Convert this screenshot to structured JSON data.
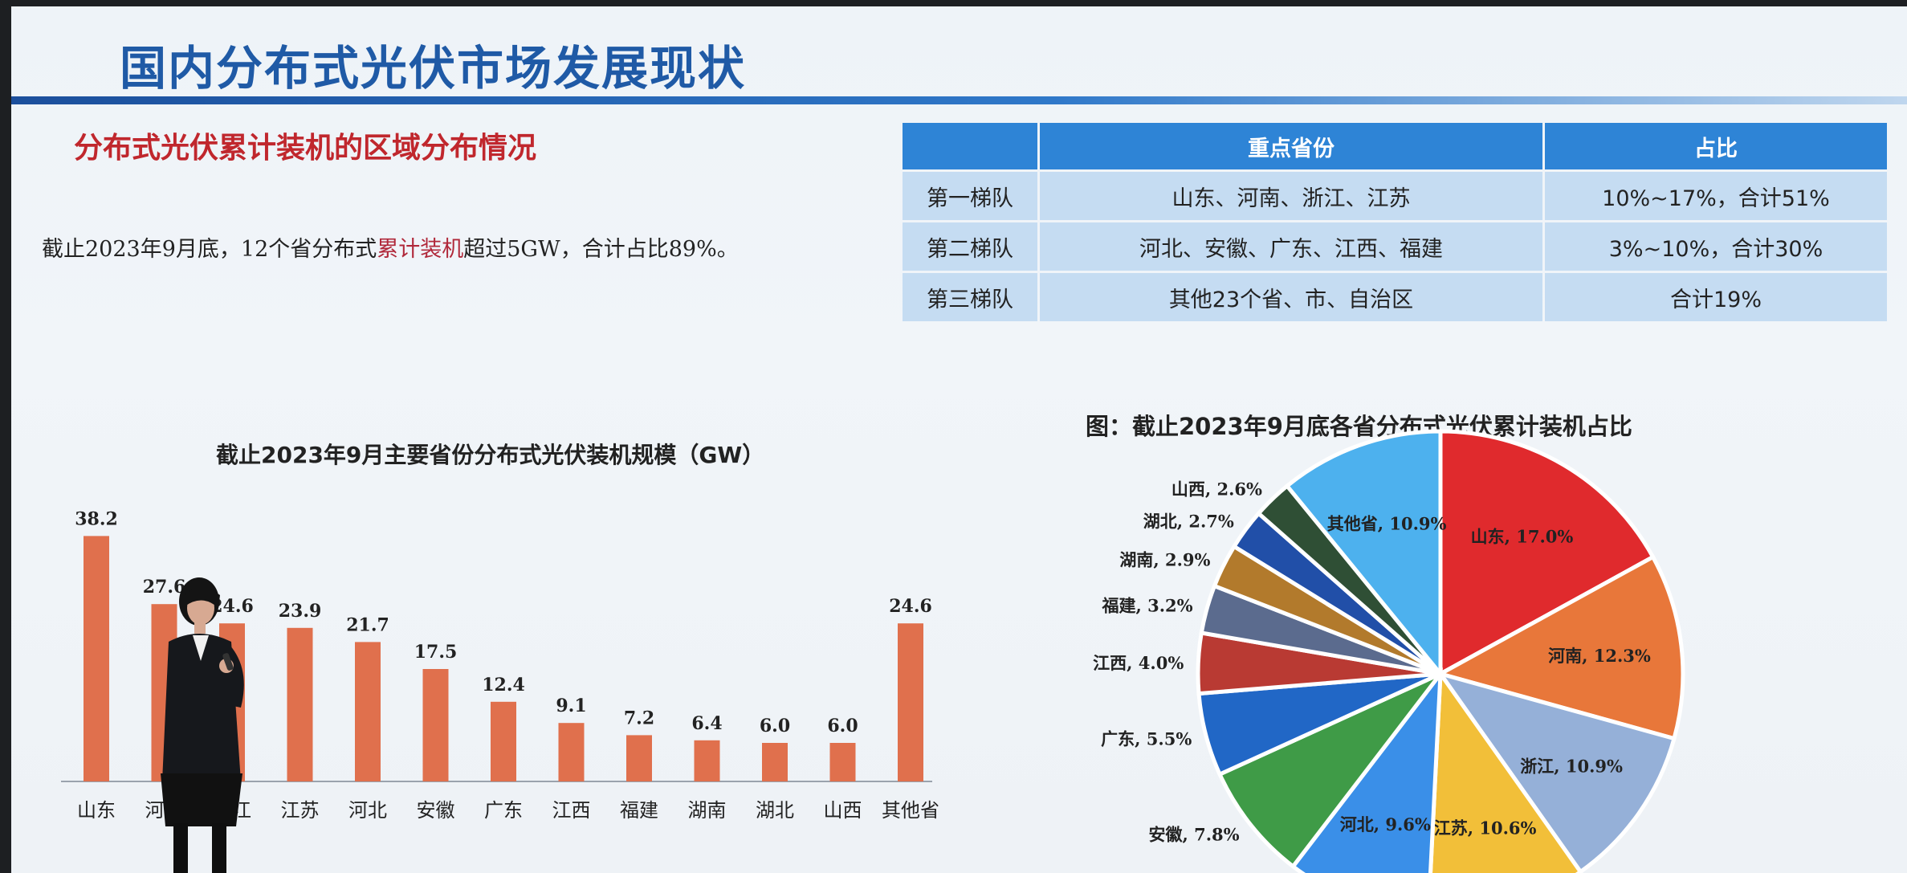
{
  "slide": {
    "title": "国内分布式光伏市场发展现状",
    "section_heading": "分布式光伏累计装机的区域分布情况",
    "summary_before": "截止2023年9月底，12个省分布式",
    "summary_highlight": "累计装机",
    "summary_after": "超过5GW，合计占比89%。"
  },
  "tier_table": {
    "headers": [
      "",
      "重点省份",
      "占比"
    ],
    "rows": [
      [
        "第一梯队",
        "山东、河南、浙江、江苏",
        "10%~17%，合计51%"
      ],
      [
        "第二梯队",
        "河北、安徽、广东、江西、福建",
        "3%~10%，合计30%"
      ],
      [
        "第三梯队",
        "其他23个省、市、自治区",
        "合计19%"
      ]
    ]
  },
  "colors": {
    "bar": "#e0704d",
    "title": "#1f5aa6",
    "header_bg": "#2e84d6",
    "cell_bg": "#c5dcf2"
  },
  "chart_data": [
    {
      "type": "bar",
      "title": "截止2023年9月主要省份分布式光伏装机规模（GW）",
      "categories": [
        "山东",
        "河南",
        "浙江",
        "江苏",
        "河北",
        "安徽",
        "广东",
        "江西",
        "福建",
        "湖南",
        "湖北",
        "山西",
        "其他省"
      ],
      "values": [
        38.2,
        27.6,
        24.6,
        23.9,
        21.7,
        17.5,
        12.4,
        9.1,
        7.2,
        6.4,
        6.0,
        6.0,
        24.6
      ],
      "value_labels": [
        "38.2",
        "27.6",
        "24.6",
        "23.9",
        "21.7",
        "17.5",
        "12.4",
        "9.1",
        "7.2",
        "6.4",
        "6.0",
        "6.0",
        "24.6"
      ],
      "ylim": [
        0,
        45
      ]
    },
    {
      "type": "pie",
      "title": "图：截止2023年9月底各省分布式光伏累计装机占比",
      "labels": [
        "山东",
        "河南",
        "浙江",
        "江苏",
        "河北",
        "安徽",
        "广东",
        "江西",
        "福建",
        "湖南",
        "湖北",
        "山西",
        "其他省"
      ],
      "values": [
        17.0,
        12.3,
        10.9,
        10.6,
        9.6,
        7.8,
        5.5,
        4.0,
        3.2,
        2.9,
        2.7,
        2.6,
        10.9
      ],
      "display_labels": [
        "山东, 17.0%",
        "河南, 12.3%",
        "浙江, 10.9%",
        "江苏, 10.6%",
        "河北, 9.6%",
        "安徽, 7.8%",
        "广东, 5.5%",
        "江西, 4.0%",
        "福建, 3.2%",
        "湖南, 2.9%",
        "湖北, 2.7%",
        "山西, 2.6%",
        "其他省, 10.9%"
      ],
      "colors": [
        "#e02a2d",
        "#e8773a",
        "#95b0d8",
        "#f2bf39",
        "#3a8fe8",
        "#3f9b47",
        "#2167c6",
        "#b93a33",
        "#5b6b8e",
        "#b27a2c",
        "#214fa8",
        "#2f4f35",
        "#4db1ee"
      ]
    }
  ]
}
